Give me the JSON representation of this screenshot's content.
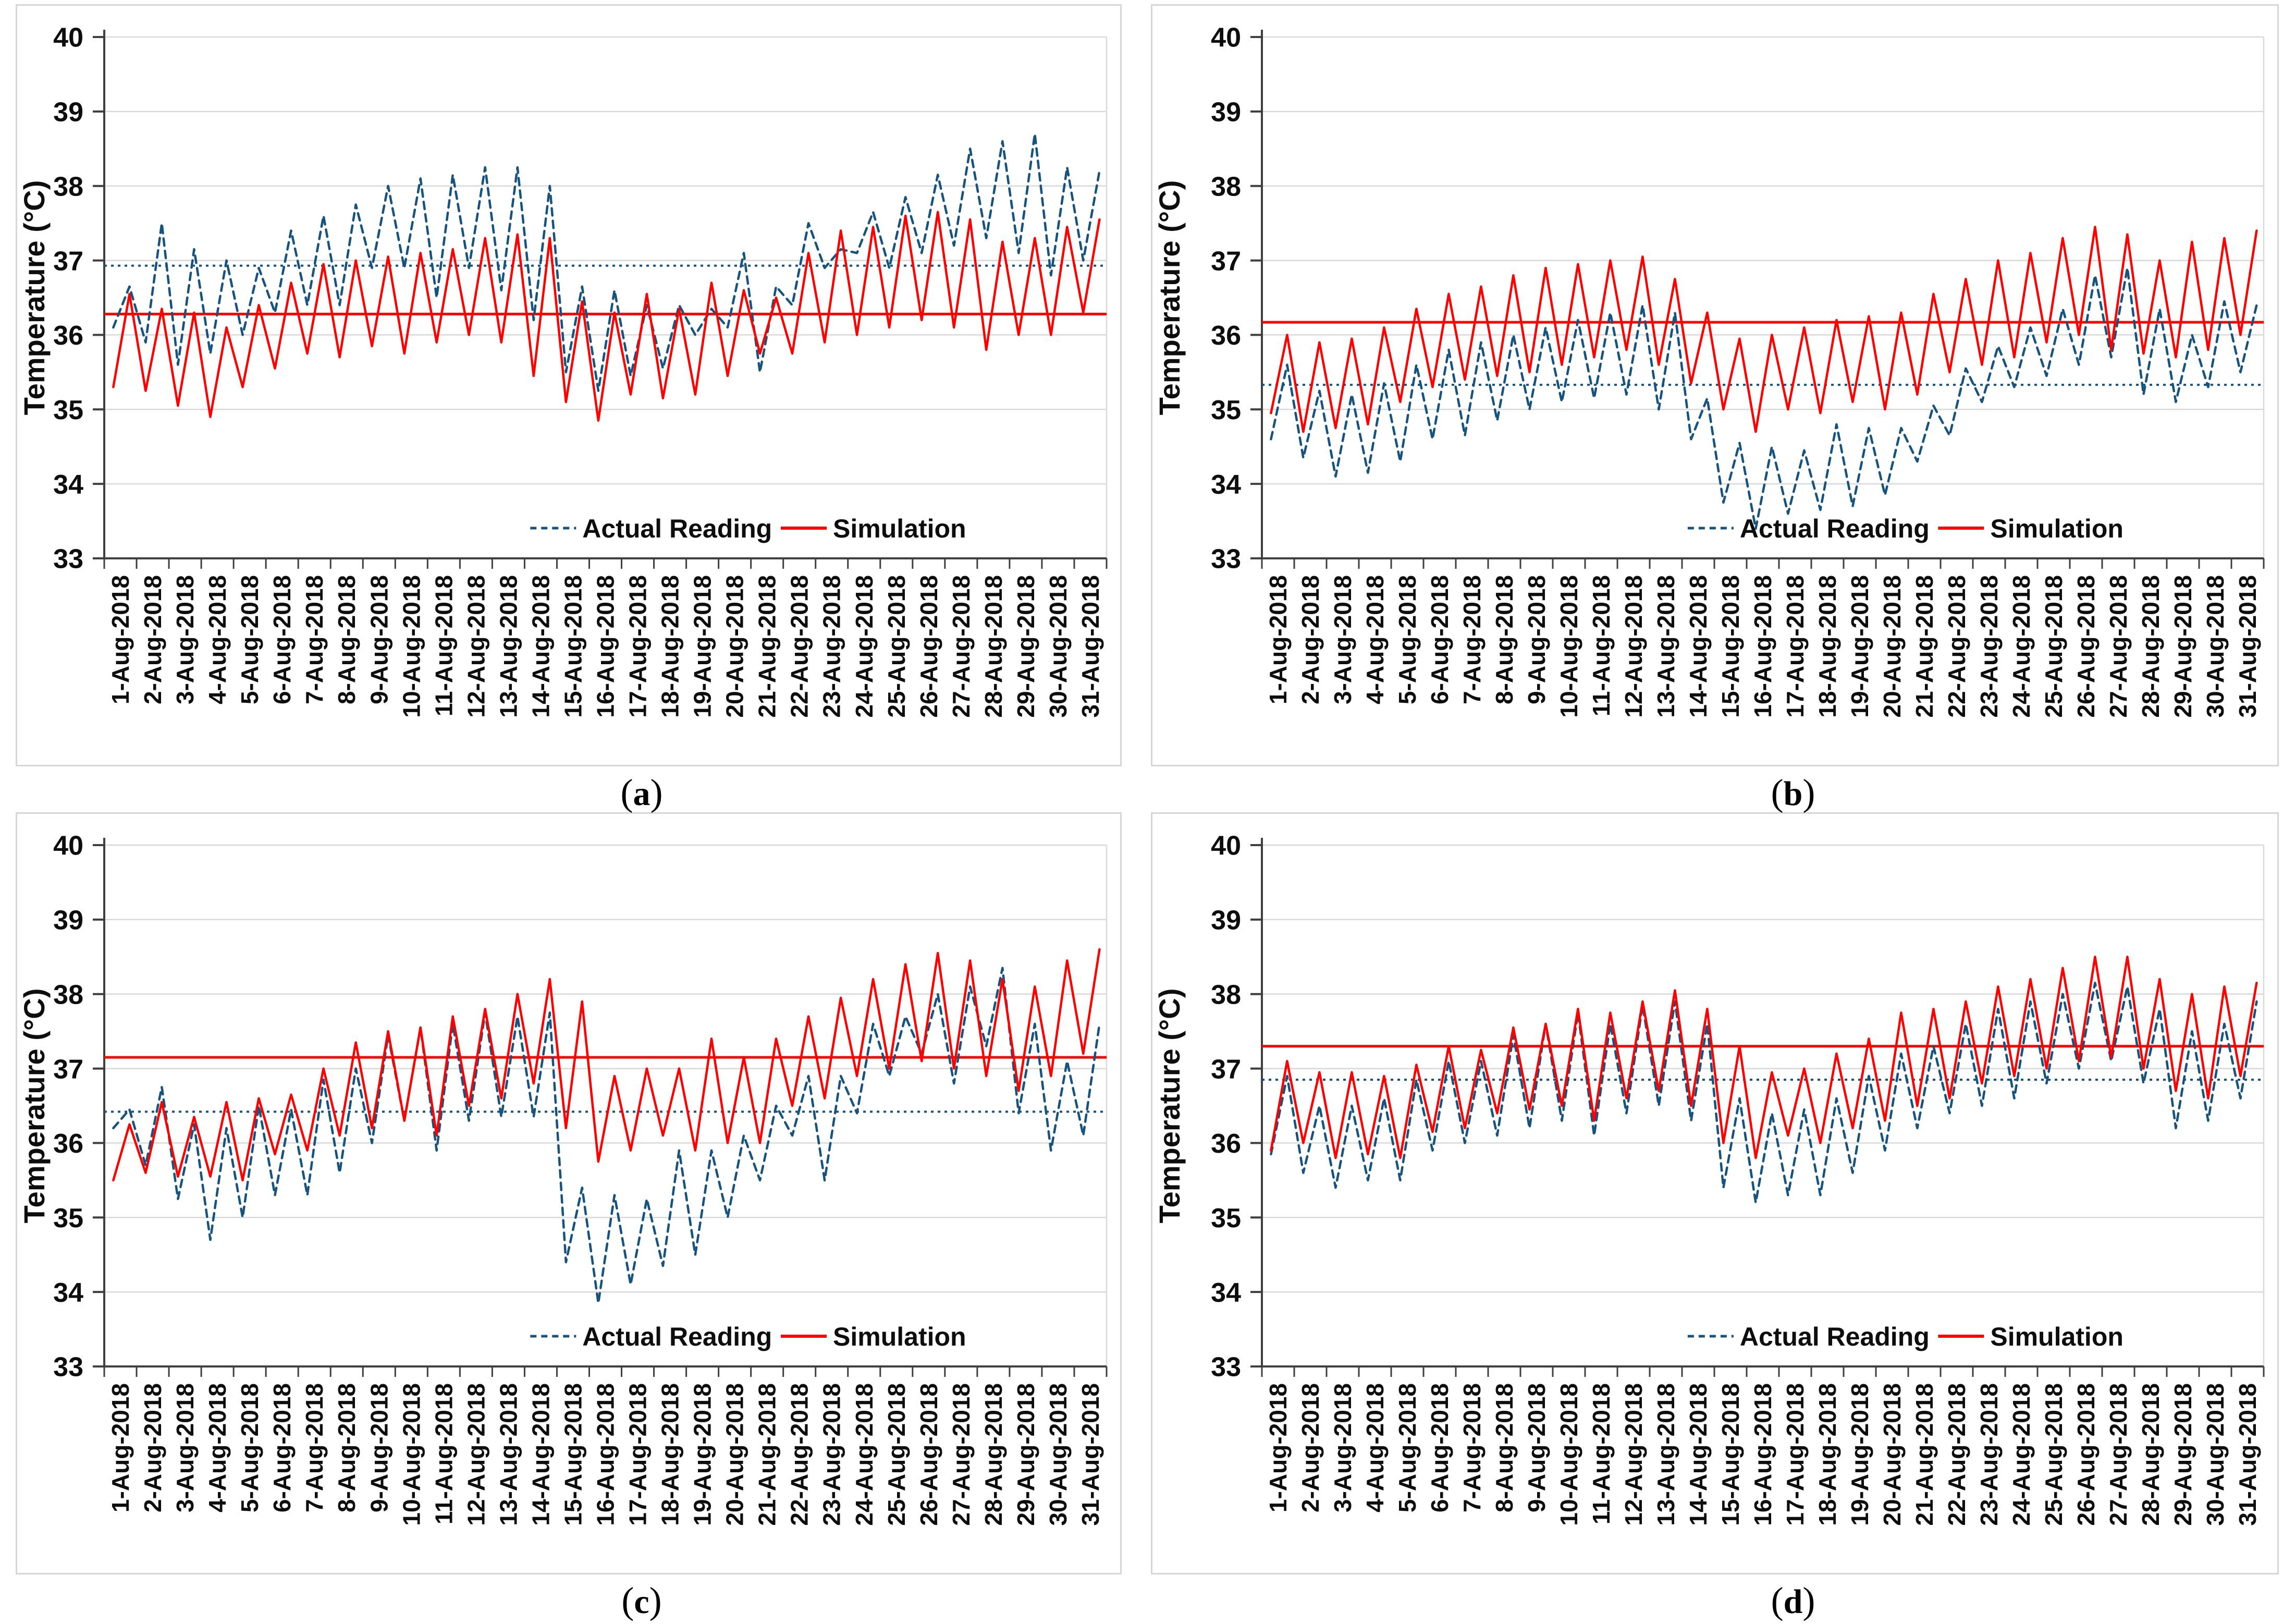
{
  "shared": {
    "ylabel": "Temperature (°C)",
    "y_ticks": [
      "33",
      "34",
      "35",
      "36",
      "37",
      "38",
      "39",
      "40"
    ],
    "ylim": [
      33,
      40
    ],
    "x_labels": [
      "1-Aug-2018",
      "2-Aug-2018",
      "3-Aug-2018",
      "4-Aug-2018",
      "5-Aug-2018",
      "6-Aug-2018",
      "7-Aug-2018",
      "8-Aug-2018",
      "9-Aug-2018",
      "10-Aug-2018",
      "11-Aug-2018",
      "12-Aug-2018",
      "13-Aug-2018",
      "14-Aug-2018",
      "15-Aug-2018",
      "16-Aug-2018",
      "17-Aug-2018",
      "18-Aug-2018",
      "19-Aug-2018",
      "20-Aug-2018",
      "21-Aug-2018",
      "22-Aug-2018",
      "23-Aug-2018",
      "24-Aug-2018",
      "25-Aug-2018",
      "26-Aug-2018",
      "27-Aug-2018",
      "28-Aug-2018",
      "29-Aug-2018",
      "30-Aug-2018",
      "31-Aug-2018"
    ],
    "legend": {
      "actual": "Actual Reading",
      "simulation": "Simulation"
    },
    "colors": {
      "actual": "#16537E",
      "simulation": "#FF0000",
      "grid": "#D9D9D9",
      "axis": "#3F3F3F",
      "text": "#0D0D0D"
    }
  },
  "chart_data": [
    {
      "type": "line",
      "caption": [
        "(",
        "a",
        ")"
      ],
      "samples_per_day": 2,
      "series": [
        {
          "name": "Actual Reading",
          "color": "#16537E",
          "dash": "dashed",
          "values": [
            36.1,
            36.65,
            35.9,
            37.5,
            35.6,
            37.15,
            35.75,
            37.0,
            36.0,
            36.9,
            36.3,
            37.4,
            36.4,
            37.6,
            36.4,
            37.75,
            36.9,
            38.0,
            36.9,
            38.1,
            36.5,
            38.15,
            36.9,
            38.25,
            36.6,
            38.25,
            36.2,
            38.0,
            35.5,
            36.65,
            35.25,
            36.6,
            35.45,
            36.4,
            35.55,
            36.4,
            36.0,
            36.35,
            36.1,
            37.1,
            35.5,
            36.65,
            36.4,
            37.5,
            36.9,
            37.15,
            37.1,
            37.65,
            36.9,
            37.85,
            37.1,
            38.15,
            37.2,
            38.5,
            37.3,
            38.6,
            37.1,
            38.7,
            36.8,
            38.25,
            37.0,
            38.2
          ]
        },
        {
          "name": "Simulation",
          "color": "#FF0000",
          "dash": "solid",
          "values": [
            35.3,
            36.55,
            35.25,
            36.35,
            35.05,
            36.3,
            34.9,
            36.1,
            35.3,
            36.4,
            35.55,
            36.7,
            35.75,
            36.95,
            35.7,
            37.0,
            35.85,
            37.05,
            35.75,
            37.1,
            35.9,
            37.15,
            36.0,
            37.3,
            35.9,
            37.35,
            35.45,
            37.3,
            35.1,
            36.45,
            34.85,
            36.3,
            35.2,
            36.55,
            35.15,
            36.35,
            35.2,
            36.7,
            35.45,
            36.6,
            35.75,
            36.5,
            35.75,
            37.1,
            35.9,
            37.4,
            36.0,
            37.45,
            36.1,
            37.6,
            36.2,
            37.65,
            36.1,
            37.55,
            35.8,
            37.25,
            36.0,
            37.3,
            36.0,
            37.45,
            36.3,
            37.55
          ]
        }
      ],
      "mean_lines": [
        {
          "series": "Actual Reading",
          "value": 36.93,
          "style": "dotted",
          "color": "#16537E"
        },
        {
          "series": "Simulation",
          "value": 36.28,
          "style": "solid",
          "color": "#FF0000"
        }
      ]
    },
    {
      "type": "line",
      "caption": [
        "(",
        "b",
        ")"
      ],
      "samples_per_day": 2,
      "series": [
        {
          "name": "Actual Reading",
          "color": "#16537E",
          "dash": "dashed",
          "values": [
            34.6,
            35.6,
            34.35,
            35.25,
            34.1,
            35.2,
            34.15,
            35.35,
            34.3,
            35.6,
            34.6,
            35.8,
            34.65,
            35.9,
            34.85,
            36.0,
            35.0,
            36.1,
            35.1,
            36.2,
            35.15,
            36.3,
            35.2,
            36.4,
            35.0,
            36.3,
            34.6,
            35.15,
            33.75,
            34.55,
            33.4,
            34.5,
            33.6,
            34.45,
            33.65,
            34.8,
            33.7,
            34.75,
            33.85,
            34.75,
            34.3,
            35.05,
            34.65,
            35.55,
            35.1,
            35.85,
            35.3,
            36.1,
            35.45,
            36.35,
            35.6,
            36.8,
            35.7,
            36.9,
            35.2,
            36.35,
            35.1,
            36.0,
            35.3,
            36.45,
            35.5,
            36.4
          ]
        },
        {
          "name": "Simulation",
          "color": "#FF0000",
          "dash": "solid",
          "values": [
            34.95,
            36.0,
            34.7,
            35.9,
            34.75,
            35.95,
            34.8,
            36.1,
            35.1,
            36.35,
            35.3,
            36.55,
            35.4,
            36.65,
            35.45,
            36.8,
            35.5,
            36.9,
            35.6,
            36.95,
            35.7,
            37.0,
            35.8,
            37.05,
            35.6,
            36.75,
            35.35,
            36.3,
            35.0,
            35.95,
            34.7,
            36.0,
            35.0,
            36.1,
            34.95,
            36.2,
            35.1,
            36.25,
            35.0,
            36.3,
            35.2,
            36.55,
            35.5,
            36.75,
            35.6,
            37.0,
            35.7,
            37.1,
            35.9,
            37.3,
            36.0,
            37.45,
            35.8,
            37.35,
            35.75,
            37.0,
            35.7,
            37.25,
            35.8,
            37.3,
            36.0,
            37.4
          ]
        }
      ],
      "mean_lines": [
        {
          "series": "Actual Reading",
          "value": 35.33,
          "style": "dotted",
          "color": "#16537E"
        },
        {
          "series": "Simulation",
          "value": 36.17,
          "style": "solid",
          "color": "#FF0000"
        }
      ]
    },
    {
      "type": "line",
      "caption": [
        "(",
        "c",
        ")"
      ],
      "samples_per_day": 2,
      "series": [
        {
          "name": "Actual Reading",
          "color": "#16537E",
          "dash": "dashed",
          "values": [
            36.2,
            36.45,
            35.7,
            36.75,
            35.25,
            36.25,
            34.7,
            36.2,
            35.0,
            36.5,
            35.3,
            36.45,
            35.3,
            36.85,
            35.6,
            37.0,
            36.0,
            37.45,
            36.3,
            37.55,
            35.9,
            37.6,
            36.3,
            37.75,
            36.35,
            37.7,
            36.35,
            37.75,
            34.4,
            35.4,
            33.85,
            35.3,
            34.1,
            35.25,
            34.35,
            35.9,
            34.5,
            35.9,
            35.0,
            36.1,
            35.5,
            36.5,
            36.1,
            36.9,
            35.5,
            36.9,
            36.4,
            37.6,
            36.9,
            37.7,
            37.2,
            38.0,
            36.8,
            38.1,
            37.3,
            38.35,
            36.4,
            37.6,
            35.9,
            37.1,
            36.1,
            37.6
          ]
        },
        {
          "name": "Simulation",
          "color": "#FF0000",
          "dash": "solid",
          "values": [
            35.5,
            36.25,
            35.6,
            36.55,
            35.55,
            36.35,
            35.55,
            36.55,
            35.5,
            36.6,
            35.85,
            36.65,
            35.9,
            37.0,
            36.1,
            37.35,
            36.2,
            37.5,
            36.3,
            37.55,
            36.1,
            37.7,
            36.5,
            37.8,
            36.6,
            38.0,
            36.8,
            38.2,
            36.2,
            37.9,
            35.75,
            36.9,
            35.9,
            37.0,
            36.1,
            37.0,
            35.9,
            37.4,
            36.0,
            37.15,
            36.0,
            37.4,
            36.5,
            37.7,
            36.6,
            37.95,
            36.9,
            38.2,
            37.0,
            38.4,
            37.1,
            38.55,
            37.0,
            38.45,
            36.9,
            38.2,
            36.7,
            38.1,
            36.9,
            38.45,
            37.2,
            38.6
          ]
        }
      ],
      "mean_lines": [
        {
          "series": "Actual Reading",
          "value": 36.42,
          "style": "dotted",
          "color": "#16537E"
        },
        {
          "series": "Simulation",
          "value": 37.15,
          "style": "solid",
          "color": "#FF0000"
        }
      ]
    },
    {
      "type": "line",
      "caption": [
        "(",
        "d",
        ")"
      ],
      "samples_per_day": 2,
      "series": [
        {
          "name": "Actual Reading",
          "color": "#16537E",
          "dash": "dashed",
          "values": [
            35.85,
            36.9,
            35.6,
            36.5,
            35.4,
            36.5,
            35.5,
            36.6,
            35.5,
            36.85,
            35.9,
            37.1,
            36.0,
            37.1,
            36.1,
            37.45,
            36.2,
            37.6,
            36.3,
            37.75,
            36.1,
            37.6,
            36.4,
            37.85,
            36.5,
            37.9,
            36.3,
            37.6,
            35.4,
            36.6,
            35.2,
            36.4,
            35.3,
            36.45,
            35.3,
            36.6,
            35.6,
            36.9,
            35.9,
            37.2,
            36.2,
            37.3,
            36.4,
            37.6,
            36.5,
            37.8,
            36.6,
            37.9,
            36.8,
            38.0,
            37.0,
            38.15,
            37.1,
            38.1,
            36.8,
            37.8,
            36.2,
            37.5,
            36.3,
            37.6,
            36.6,
            37.9
          ]
        },
        {
          "name": "Simulation",
          "color": "#FF0000",
          "dash": "solid",
          "values": [
            35.9,
            37.1,
            36.0,
            36.95,
            35.8,
            36.95,
            35.85,
            36.9,
            35.8,
            37.05,
            36.15,
            37.3,
            36.2,
            37.25,
            36.4,
            37.55,
            36.45,
            37.6,
            36.5,
            37.8,
            36.3,
            37.75,
            36.6,
            37.9,
            36.7,
            38.05,
            36.5,
            37.8,
            36.0,
            37.3,
            35.8,
            36.95,
            36.1,
            37.0,
            36.0,
            37.2,
            36.2,
            37.4,
            36.3,
            37.75,
            36.5,
            37.8,
            36.6,
            37.9,
            36.8,
            38.1,
            36.9,
            38.2,
            37.0,
            38.35,
            37.1,
            38.5,
            37.15,
            38.5,
            37.0,
            38.2,
            36.7,
            38.0,
            36.6,
            38.1,
            36.9,
            38.15
          ]
        }
      ],
      "mean_lines": [
        {
          "series": "Actual Reading",
          "value": 36.85,
          "style": "dotted",
          "color": "#16537E"
        },
        {
          "series": "Simulation",
          "value": 37.3,
          "style": "solid",
          "color": "#FF0000"
        }
      ]
    }
  ]
}
